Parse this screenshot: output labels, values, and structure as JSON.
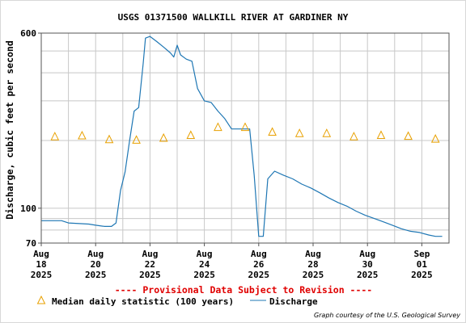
{
  "chart_data": {
    "type": "line",
    "title": "USGS 01371500 WALLKILL RIVER AT GARDINER NY",
    "ylabel": "Discharge, cubic feet per second",
    "xlabel": "",
    "y_scale": "log",
    "ylim": [
      70,
      600
    ],
    "y_ticks": [
      {
        "value": 70,
        "label": "70"
      },
      {
        "value": 100,
        "label": "100"
      },
      {
        "value": 600,
        "label": "600"
      }
    ],
    "y_gridlines": [
      80,
      90,
      200,
      300,
      400,
      500
    ],
    "x_range": [
      "2025-08-18",
      "2025-09-02"
    ],
    "x_ticks": [
      {
        "date": "2025-08-18",
        "line1": "Aug",
        "line2": "18",
        "line3": "2025"
      },
      {
        "date": "2025-08-20",
        "line1": "Aug",
        "line2": "20",
        "line3": "2025"
      },
      {
        "date": "2025-08-22",
        "line1": "Aug",
        "line2": "22",
        "line3": "2025"
      },
      {
        "date": "2025-08-24",
        "line1": "Aug",
        "line2": "24",
        "line3": "2025"
      },
      {
        "date": "2025-08-26",
        "line1": "Aug",
        "line2": "26",
        "line3": "2025"
      },
      {
        "date": "2025-08-28",
        "line1": "Aug",
        "line2": "28",
        "line3": "2025"
      },
      {
        "date": "2025-08-30",
        "line1": "Aug",
        "line2": "30",
        "line3": "2025"
      },
      {
        "date": "2025-09-01",
        "line1": "Sep",
        "line2": "01",
        "line3": "2025"
      }
    ],
    "grid": true,
    "legend_position": "bottom",
    "series": [
      {
        "name": "Discharge",
        "style": "line",
        "color": "#1f77b4",
        "points": [
          [
            "2025-08-18 00:00",
            88
          ],
          [
            "2025-08-18 18:00",
            88
          ],
          [
            "2025-08-19 00:00",
            86
          ],
          [
            "2025-08-19 18:00",
            85
          ],
          [
            "2025-08-20 00:00",
            84
          ],
          [
            "2025-08-20 08:00",
            83
          ],
          [
            "2025-08-20 14:00",
            83
          ],
          [
            "2025-08-20 18:00",
            86
          ],
          [
            "2025-08-20 22:00",
            120
          ],
          [
            "2025-08-21 02:00",
            145
          ],
          [
            "2025-08-21 06:00",
            200
          ],
          [
            "2025-08-21 10:00",
            270
          ],
          [
            "2025-08-21 14:00",
            280
          ],
          [
            "2025-08-21 18:00",
            440
          ],
          [
            "2025-08-21 20:00",
            570
          ],
          [
            "2025-08-22 00:00",
            580
          ],
          [
            "2025-08-22 06:00",
            550
          ],
          [
            "2025-08-22 12:00",
            520
          ],
          [
            "2025-08-22 18:00",
            490
          ],
          [
            "2025-08-22 21:00",
            470
          ],
          [
            "2025-08-23 00:00",
            530
          ],
          [
            "2025-08-23 03:00",
            480
          ],
          [
            "2025-08-23 08:00",
            460
          ],
          [
            "2025-08-23 13:00",
            450
          ],
          [
            "2025-08-23 18:00",
            340
          ],
          [
            "2025-08-24 00:00",
            300
          ],
          [
            "2025-08-24 06:00",
            295
          ],
          [
            "2025-08-24 12:00",
            270
          ],
          [
            "2025-08-24 18:00",
            250
          ],
          [
            "2025-08-25 00:00",
            225
          ],
          [
            "2025-08-25 08:00",
            225
          ],
          [
            "2025-08-25 16:00",
            225
          ],
          [
            "2025-08-25 20:00",
            140
          ],
          [
            "2025-08-26 00:00",
            75
          ],
          [
            "2025-08-26 04:00",
            75
          ],
          [
            "2025-08-26 08:00",
            135
          ],
          [
            "2025-08-26 14:00",
            146
          ],
          [
            "2025-08-26 22:00",
            140
          ],
          [
            "2025-08-27 06:00",
            135
          ],
          [
            "2025-08-27 14:00",
            128
          ],
          [
            "2025-08-27 22:00",
            123
          ],
          [
            "2025-08-28 06:00",
            117
          ],
          [
            "2025-08-28 14:00",
            111
          ],
          [
            "2025-08-28 22:00",
            106
          ],
          [
            "2025-08-29 06:00",
            102
          ],
          [
            "2025-08-29 14:00",
            97
          ],
          [
            "2025-08-29 22:00",
            93
          ],
          [
            "2025-08-30 06:00",
            90
          ],
          [
            "2025-08-30 14:00",
            87
          ],
          [
            "2025-08-30 22:00",
            84
          ],
          [
            "2025-08-31 06:00",
            81
          ],
          [
            "2025-08-31 14:00",
            79
          ],
          [
            "2025-08-31 22:00",
            78
          ],
          [
            "2025-09-01 06:00",
            76
          ],
          [
            "2025-09-01 12:00",
            75
          ],
          [
            "2025-09-01 18:00",
            75
          ]
        ]
      },
      {
        "name": "Median daily statistic (100 years)",
        "style": "marker",
        "marker": "triangle",
        "color": "#e8a000",
        "points": [
          [
            "2025-08-18 12:00",
            208
          ],
          [
            "2025-08-19 12:00",
            210
          ],
          [
            "2025-08-20 12:00",
            202
          ],
          [
            "2025-08-21 12:00",
            201
          ],
          [
            "2025-08-22 12:00",
            205
          ],
          [
            "2025-08-23 12:00",
            211
          ],
          [
            "2025-08-24 12:00",
            229
          ],
          [
            "2025-08-25 12:00",
            229
          ],
          [
            "2025-08-26 12:00",
            218
          ],
          [
            "2025-08-27 12:00",
            215
          ],
          [
            "2025-08-28 12:00",
            215
          ],
          [
            "2025-08-29 12:00",
            208
          ],
          [
            "2025-08-30 12:00",
            211
          ],
          [
            "2025-08-31 12:00",
            209
          ],
          [
            "2025-09-01 12:00",
            203
          ]
        ]
      }
    ]
  },
  "footer": {
    "provisional": "---- Provisional Data Subject to Revision ----",
    "legend_median": "Median daily statistic (100 years)",
    "legend_discharge": "Discharge",
    "credit": "Graph courtesy of the U.S. Geological Survey"
  }
}
